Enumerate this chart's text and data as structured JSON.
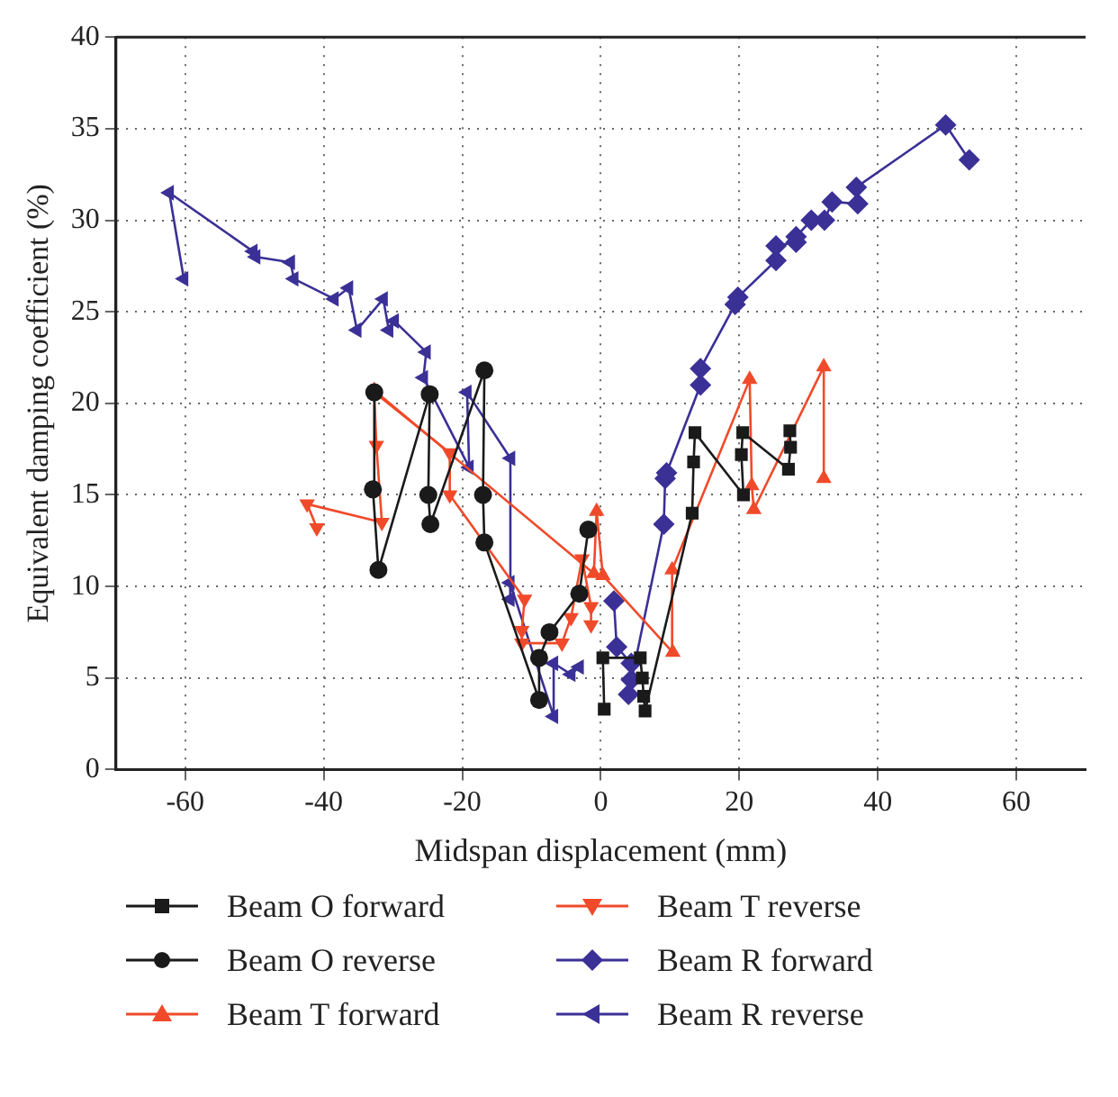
{
  "chart_data": {
    "type": "line",
    "xlabel": "Midspan displacement (mm)",
    "ylabel": "Equivalent damping coefficient (%)",
    "xlim": [
      -70,
      70
    ],
    "xticks": [
      -60,
      -40,
      -20,
      0,
      20,
      40,
      60
    ],
    "ylim": [
      0,
      40
    ],
    "yticks": [
      0,
      5,
      10,
      15,
      20,
      25,
      30,
      35,
      40
    ],
    "grid": true,
    "legend": "bottom",
    "line_style": "solid",
    "series": [
      {
        "name": "Beam O forward",
        "color": "#1a1a1a",
        "marker": "square",
        "x": [
          0.5,
          0.3,
          5.7,
          6.0,
          6.2,
          6.4,
          13.2,
          13.4,
          13.6,
          20.6,
          20.3,
          20.5,
          27.1,
          27.4,
          27.3
        ],
        "values": [
          3.3,
          6.1,
          6.1,
          5.0,
          4.0,
          3.2,
          14.0,
          16.8,
          18.4,
          15.0,
          17.2,
          18.4,
          16.4,
          17.6,
          18.5
        ]
      },
      {
        "name": "Beam O reverse",
        "color": "#1a1a1a",
        "marker": "circle",
        "x": [
          -1.8,
          -3.1,
          -7.4,
          -8.9,
          -8.9,
          -16.8,
          -17,
          -16.8,
          -24.6,
          -24.9,
          -24.7,
          -32.1,
          -32.9,
          -32.7
        ],
        "values": [
          13.1,
          9.6,
          7.5,
          6.1,
          3.8,
          12.4,
          15.0,
          21.8,
          13.4,
          15.0,
          20.5,
          10.9,
          15.3,
          20.6
        ]
      },
      {
        "name": "Beam T forward",
        "color": "#f04a2a",
        "marker": "triangle",
        "x": [
          -32.7,
          -1.0,
          -0.6,
          0.3,
          10.4,
          10.3,
          21.5,
          21.8,
          22.1,
          32.2,
          32.2
        ],
        "values": [
          20.7,
          10.7,
          14.1,
          10.6,
          6.4,
          10.9,
          21.3,
          15.5,
          14.2,
          22.0,
          15.9
        ]
      },
      {
        "name": "Beam T reverse",
        "color": "#f04a2a",
        "marker": "triangle-down",
        "x": [
          -1.4,
          -1.4,
          -2.7,
          -4.3,
          -5.6,
          -11.4,
          -11.4,
          -11,
          -21.8,
          -21.8,
          -32.7,
          -32.4,
          -31.6,
          -42.4,
          -41
        ],
        "values": [
          7.9,
          8.9,
          11.5,
          8.3,
          6.9,
          6.9,
          7.6,
          9.3,
          15.0,
          17.3,
          20.6,
          17.7,
          13.5,
          14.5,
          13.2
        ]
      },
      {
        "name": "Beam R forward",
        "color": "#3a3096",
        "marker": "diamond",
        "x": [
          1.9,
          2.3,
          4.4,
          4.4,
          4.0,
          9.1,
          9.3,
          9.5,
          14.4,
          14.4,
          19.4,
          19.8,
          25.3,
          25.3,
          28.2,
          28.2,
          30.4,
          32.3,
          33.4,
          37.1,
          36.9,
          49.8,
          53.2
        ],
        "values": [
          9.2,
          6.7,
          5.8,
          4.9,
          4.1,
          13.4,
          15.9,
          16.2,
          21.0,
          21.9,
          25.4,
          25.8,
          27.8,
          28.6,
          28.8,
          29.1,
          30.0,
          30.0,
          31.0,
          30.9,
          31.8,
          35.2,
          33.3
        ]
      },
      {
        "name": "Beam R reverse",
        "color": "#3a3096",
        "marker": "triangle-left",
        "x": [
          -3.1,
          -4.3,
          -6.8,
          -6.8,
          -13.1,
          -13.1,
          -13.0,
          -19.3,
          -19.0,
          -25.6,
          -25.2,
          -29.8,
          -30.6,
          -31.4,
          -35.2,
          -36.4,
          -38.5,
          -44.3,
          -44.8,
          -49.8,
          -50.2,
          -62.3,
          -60.2
        ],
        "values": [
          5.6,
          5.2,
          5.8,
          2.9,
          10.2,
          9.3,
          17.0,
          20.6,
          16.5,
          21.4,
          22.8,
          24.5,
          24.0,
          25.7,
          24.0,
          26.3,
          25.7,
          26.8,
          27.7,
          28.0,
          28.3,
          31.5,
          26.8
        ]
      }
    ]
  }
}
